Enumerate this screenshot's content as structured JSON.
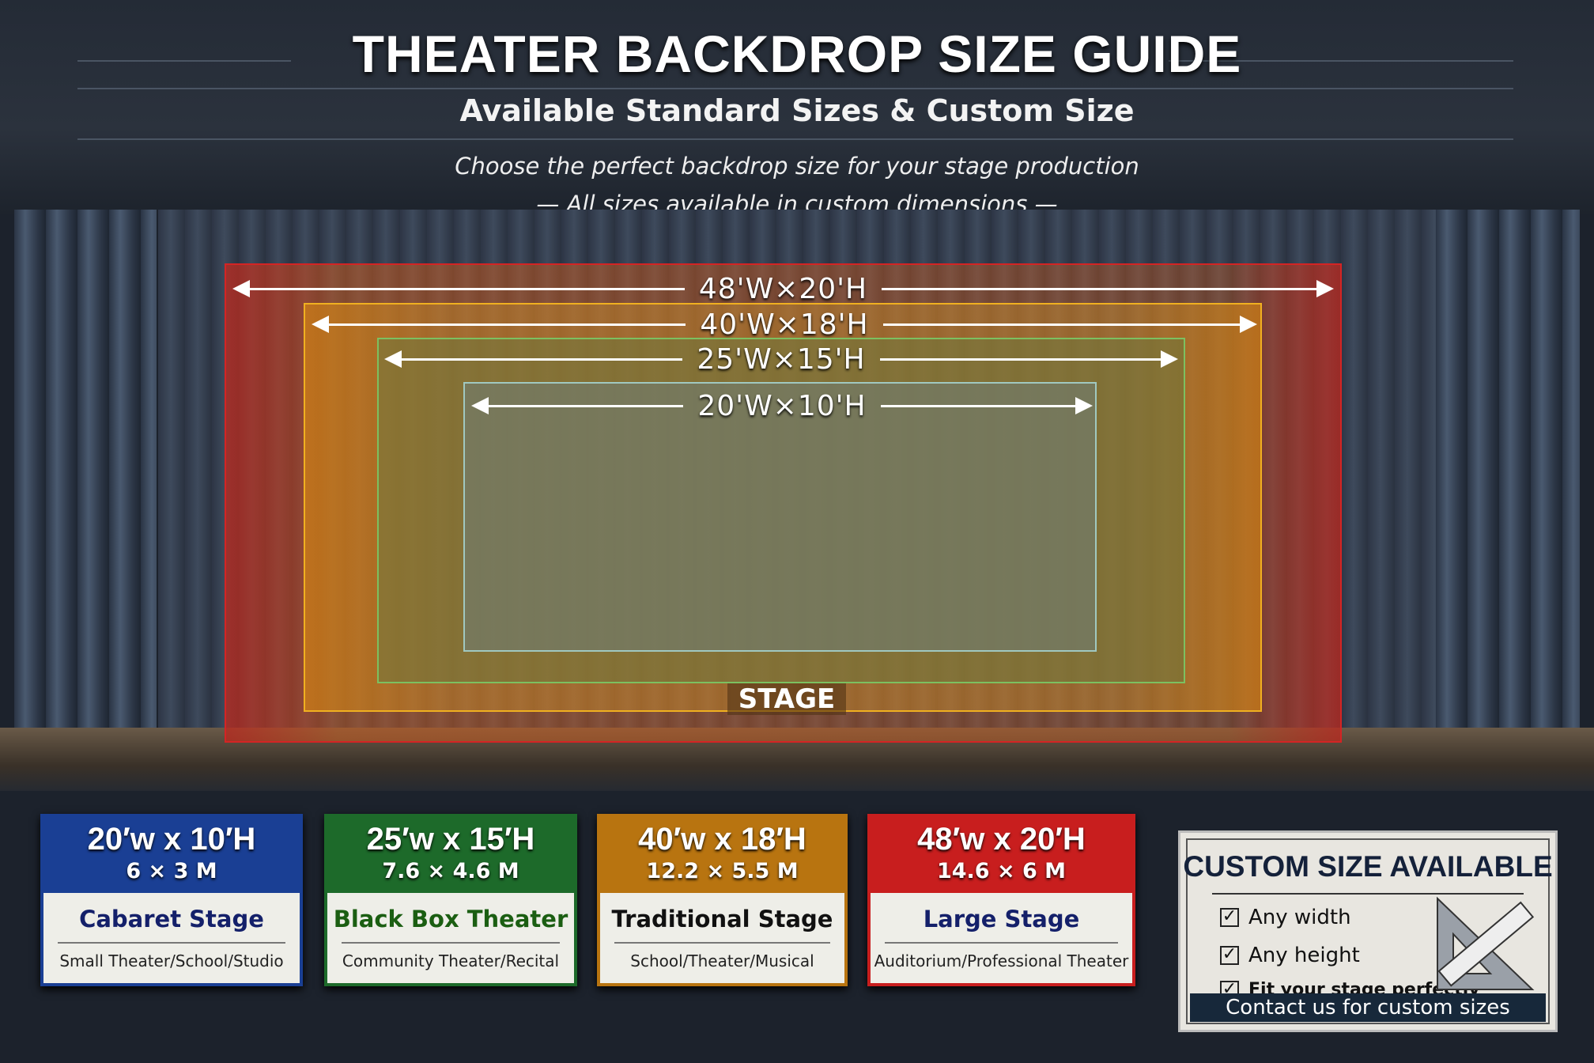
{
  "header": {
    "title": "THEATER BACKDROP SIZE GUIDE",
    "subtitle": "Available Standard Sizes & Custom Size",
    "tagline": "Choose the perfect backdrop size for your stage production",
    "tagline2": "— All sizes available in custom dimensions —"
  },
  "stage": {
    "label": "STAGE",
    "dimensions": [
      {
        "label": "48'W×20'H",
        "color": "#d42424"
      },
      {
        "label": "40'W×18'H",
        "color": "#f0b020"
      },
      {
        "label": "25'W×15'H",
        "color": "#7cc060"
      },
      {
        "label": "20'W×10'H",
        "color": "#a0c8c0"
      }
    ]
  },
  "cards": [
    {
      "size": "20′w x 10′H",
      "metric": "6 × 3 M",
      "name": "Cabaret Stage",
      "use": "Small Theater/School/Studio",
      "color": "#1a3f94",
      "name_color": "#14206a"
    },
    {
      "size": "25′w x 15′H",
      "metric": "7.6 × 4.6 M",
      "name": "Black Box Theater",
      "use": "Community Theater/Recital",
      "color": "#1d6a2a",
      "name_color": "#1b5e12"
    },
    {
      "size": "40′w x 18′H",
      "metric": "12.2 × 5.5 M",
      "name": "Traditional Stage",
      "use": "School/Theater/Musical",
      "color": "#b87410",
      "name_color": "#111111"
    },
    {
      "size": "48′w x 20′H",
      "metric": "14.6 × 6 M",
      "name": "Large Stage",
      "use": "Auditorium/Professional Theater",
      "color": "#c81e1e",
      "name_color": "#14206a"
    }
  ],
  "custom": {
    "title": "CUSTOM SIZE AVAILABLE",
    "items": [
      "Any width",
      "Any height",
      "Fit your stage perfectly"
    ],
    "icon": "ruler-set-square-icon",
    "contact": "Contact us for custom sizes"
  }
}
